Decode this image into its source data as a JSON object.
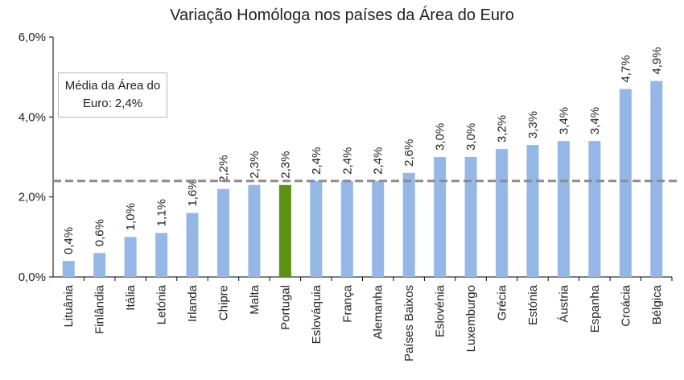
{
  "chart_data": {
    "type": "bar",
    "title": "Variação Homóloga nos países da Área do Euro",
    "xlabel": "",
    "ylabel": "",
    "categories": [
      "Lituânia",
      "Finlândia",
      "Itália",
      "Letónia",
      "Irlanda",
      "Chipre",
      "Malta",
      "Portugal",
      "Eslováquia",
      "França",
      "Alemanha",
      "Países Baixos",
      "Eslovénia",
      "Luxemburgo",
      "Grécia",
      "Estónia",
      "Áustria",
      "Espanha",
      "Croácia",
      "Bélgica"
    ],
    "values": [
      0.4,
      0.6,
      1.0,
      1.1,
      1.6,
      2.2,
      2.3,
      2.3,
      2.4,
      2.4,
      2.4,
      2.6,
      3.0,
      3.0,
      3.2,
      3.3,
      3.4,
      3.4,
      4.7,
      4.9
    ],
    "data_labels": [
      "0,4%",
      "0,6%",
      "1,0%",
      "1,1%",
      "1,6%",
      "2,2%",
      "2,3%",
      "2,3%",
      "2,4%",
      "2,4%",
      "2,4%",
      "2,6%",
      "3,0%",
      "3,0%",
      "3,2%",
      "3,3%",
      "3,4%",
      "3,4%",
      "4,7%",
      "4,9%"
    ],
    "highlight_category": "Portugal",
    "ylim": [
      0,
      6
    ],
    "yticks": [
      0,
      2,
      4,
      6
    ],
    "ytick_labels": [
      "0,0%",
      "2,0%",
      "4,0%",
      "6,0%"
    ],
    "reference_line": {
      "value": 2.4,
      "style": "dashed"
    },
    "annotation": "Média da Área do Euro: 2,4%",
    "grid": false,
    "legend": "none",
    "colors": {
      "bar": "#95b7e6",
      "highlight": "#5b9216",
      "reference_line": "#8c8c8c",
      "axis": "#000000"
    }
  }
}
